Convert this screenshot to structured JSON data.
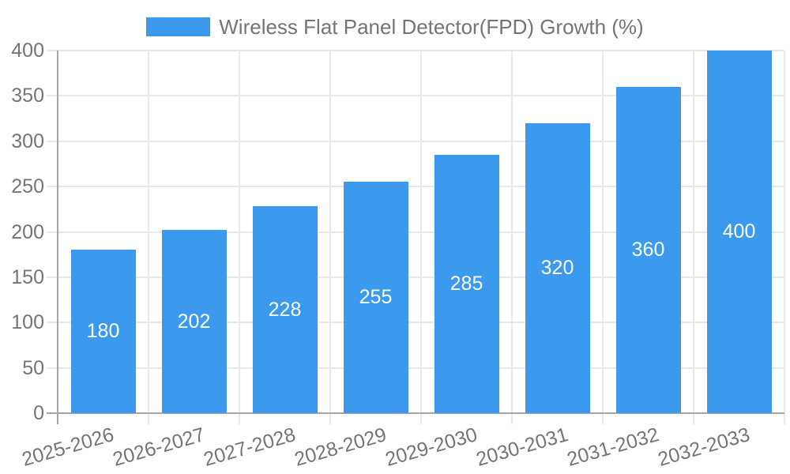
{
  "chart_data": {
    "type": "bar",
    "title": "Wireless Flat Panel Detector(FPD) Growth (%)",
    "legend": {
      "position": "top",
      "entries": [
        {
          "label": "Wireless Flat Panel Detector(FPD) Growth (%)",
          "color": "#3b9aee"
        }
      ]
    },
    "categories": [
      "2025-2026",
      "2026-2027",
      "2027-2028",
      "2028-2029",
      "2029-2030",
      "2030-2031",
      "2031-2032",
      "2032-2033"
    ],
    "values": [
      180,
      202,
      228,
      255,
      285,
      320,
      360,
      400
    ],
    "xlabel": "",
    "ylabel": "",
    "ylim": [
      0,
      400
    ],
    "yticks": [
      0,
      50,
      100,
      150,
      200,
      250,
      300,
      350,
      400
    ],
    "grid": true,
    "x_label_rotation_deg": -16,
    "colors": {
      "bar": "#3b9aee",
      "bar_label": "#ffffff",
      "grid": "#e8e8e8",
      "tick": "#e0e0e0",
      "axis": "#a5a5a5",
      "text": "#757575",
      "background": "#ffffff"
    }
  }
}
